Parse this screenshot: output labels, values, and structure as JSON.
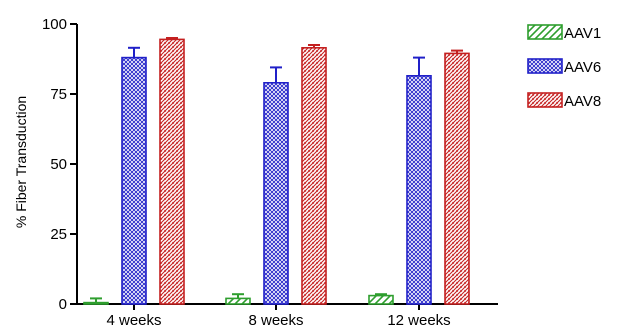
{
  "chart_data": {
    "type": "bar",
    "title": "",
    "xlabel": "",
    "ylabel": "% Fiber Transduction",
    "ylim": [
      0,
      100
    ],
    "yticks": [
      0,
      25,
      50,
      75,
      100
    ],
    "grid": false,
    "legend_position": "top-right",
    "categories": [
      "4 weeks",
      "8 weeks",
      "12 weeks"
    ],
    "series": [
      {
        "name": "AAV1",
        "color": "#2e9e2e",
        "pattern": "diagonal-hatch",
        "values": [
          0.5,
          2,
          3
        ],
        "errors": [
          1.5,
          1.5,
          0.5
        ]
      },
      {
        "name": "AAV6",
        "color": "#2020c8",
        "pattern": "crosshatch",
        "values": [
          88,
          79,
          81.5
        ],
        "errors": [
          3.5,
          5.5,
          6.5
        ]
      },
      {
        "name": "AAV8",
        "color": "#c42020",
        "pattern": "dense-hatch",
        "values": [
          94.5,
          91.5,
          89.5
        ],
        "errors": [
          0.5,
          1,
          1
        ]
      }
    ]
  }
}
